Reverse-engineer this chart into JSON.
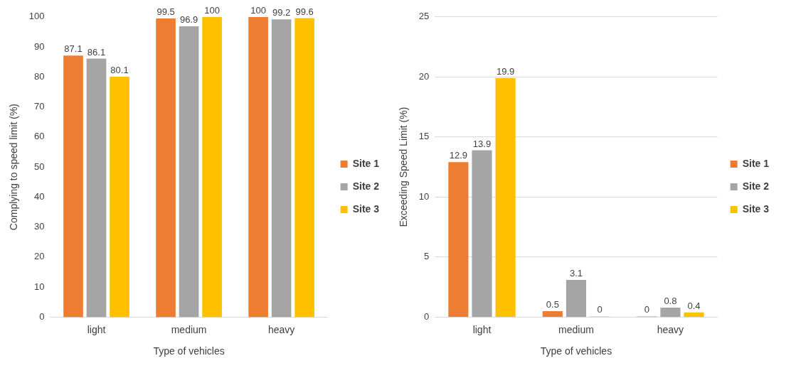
{
  "chart_data": [
    {
      "type": "bar",
      "categories": [
        "light",
        "medium",
        "heavy"
      ],
      "xlabel": "Type of vehicles",
      "ylabel": "Complying to speed limit (%)",
      "ylim": [
        0,
        100
      ],
      "yticks": [
        0,
        10,
        20,
        30,
        40,
        50,
        60,
        70,
        80,
        90,
        100
      ],
      "grid": false,
      "legend": "right",
      "data_labels": true,
      "series": [
        {
          "name": "Site 1",
          "color": "#ed7d31",
          "values": [
            87.1,
            99.5,
            100
          ]
        },
        {
          "name": "Site 2",
          "color": "#a5a5a5",
          "values": [
            86.1,
            96.9,
            99.2
          ]
        },
        {
          "name": "Site 3",
          "color": "#ffc000",
          "values": [
            80.1,
            100,
            99.6
          ]
        }
      ]
    },
    {
      "type": "bar",
      "categories": [
        "light",
        "medium",
        "heavy"
      ],
      "xlabel": "Type of vehicles",
      "ylabel": "Exceeding Speed Limit (%)",
      "ylim": [
        0,
        25
      ],
      "yticks": [
        0,
        5,
        10,
        15,
        20,
        25
      ],
      "grid": "y",
      "legend": "right",
      "data_labels": true,
      "series": [
        {
          "name": "Site 1",
          "color": "#ed7d31",
          "values": [
            12.9,
            0.5,
            0
          ]
        },
        {
          "name": "Site 2",
          "color": "#a5a5a5",
          "values": [
            13.9,
            3.1,
            0.8
          ]
        },
        {
          "name": "Site 3",
          "color": "#ffc000",
          "values": [
            19.9,
            0,
            0.4
          ]
        }
      ]
    }
  ]
}
